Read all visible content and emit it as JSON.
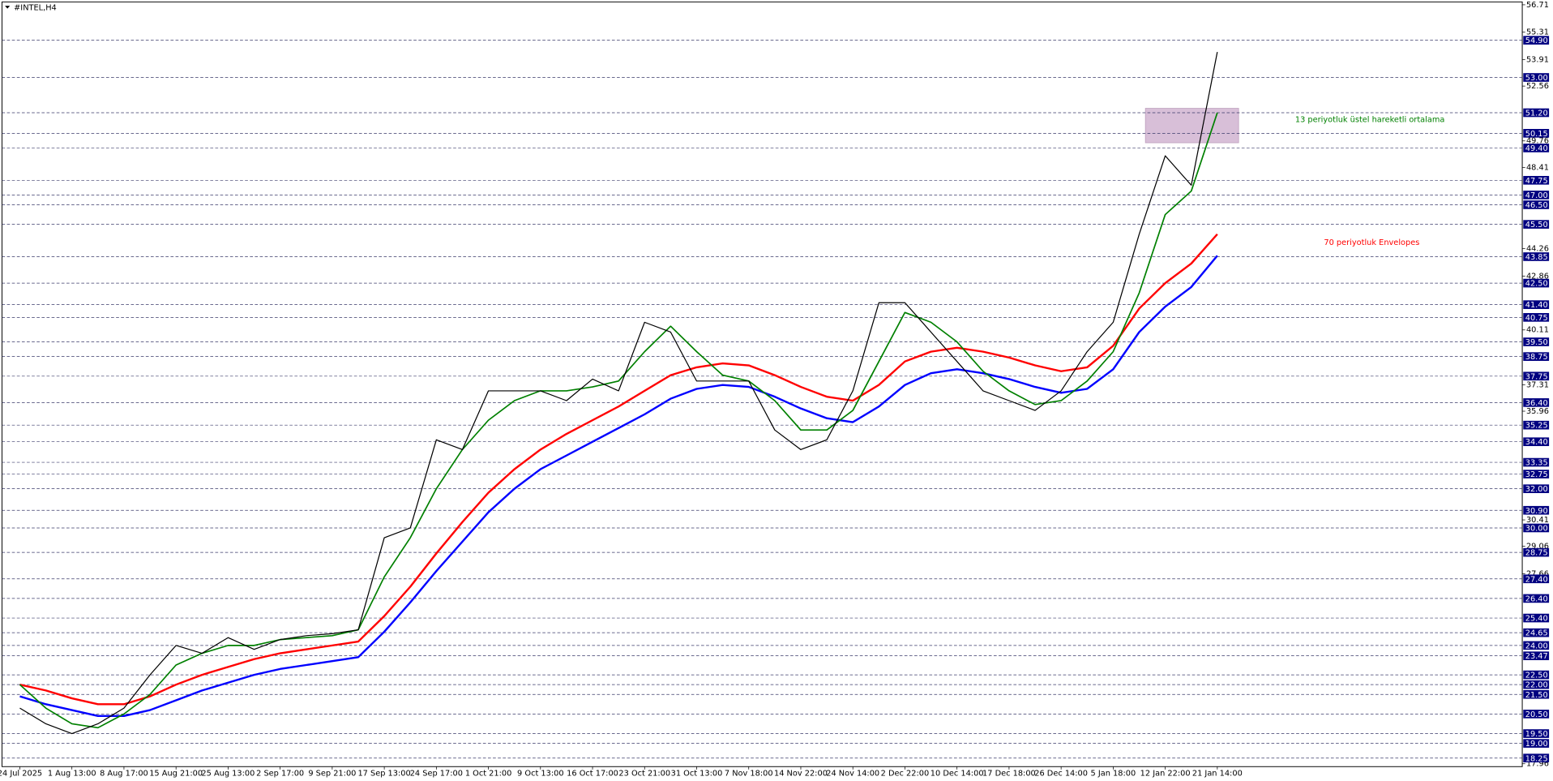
{
  "chart_data": {
    "type": "line",
    "title": "#INTEL,H4",
    "categories": [
      "24 Jul 2025",
      null,
      "1 Aug 13:00",
      null,
      "8 Aug 17:00",
      null,
      "15 Aug 21:00",
      null,
      "25 Aug 13:00",
      null,
      "2 Sep 17:00",
      null,
      "9 Sep 21:00",
      null,
      "17 Sep 13:00",
      null,
      "24 Sep 17:00",
      null,
      "1 Oct 21:00",
      null,
      "9 Oct 13:00",
      null,
      "16 Oct 17:00",
      null,
      "23 Oct 21:00",
      null,
      "31 Oct 13:00",
      null,
      "7 Nov 18:00",
      null,
      "14 Nov 22:00",
      null,
      "24 Nov 14:00",
      null,
      "2 Dec 22:00",
      null,
      "10 Dec 14:00",
      null,
      "17 Dec 18:00",
      null,
      "26 Dec 14:00",
      null,
      "5 Jan 18:00",
      null,
      "12 Jan 22:00",
      null,
      "21 Jan 14:00"
    ],
    "series": [
      {
        "color": "#000000",
        "values": [
          20.8,
          20.0,
          19.5,
          20.0,
          20.8,
          22.5,
          24.0,
          23.6,
          24.4,
          23.8,
          24.3,
          24.5,
          24.6,
          24.8,
          29.5,
          30.0,
          34.5,
          34.0,
          37.0,
          37.0,
          37.0,
          36.5,
          37.6,
          37.0,
          40.5,
          40.0,
          37.5,
          37.5,
          37.5,
          35.0,
          34.0,
          34.5,
          37.0,
          41.5,
          41.5,
          40.0,
          38.5,
          37.0,
          36.5,
          36.0,
          37.0,
          39.0,
          40.5,
          45.0,
          49.0,
          47.5,
          54.3
        ]
      },
      {
        "name": "13 periyotluk üstel hareketli ortalama",
        "color": "#008000",
        "values": [
          22.0,
          20.8,
          20.0,
          19.8,
          20.5,
          21.5,
          23.0,
          23.6,
          24.0,
          24.0,
          24.3,
          24.4,
          24.5,
          24.8,
          27.5,
          29.5,
          32.0,
          34.0,
          35.5,
          36.5,
          37.0,
          37.0,
          37.2,
          37.5,
          39.0,
          40.3,
          39.0,
          37.8,
          37.5,
          36.5,
          35.0,
          35.0,
          36.0,
          38.5,
          41.0,
          40.5,
          39.5,
          38.0,
          37.0,
          36.3,
          36.5,
          37.5,
          39.0,
          42.0,
          46.0,
          47.2,
          51.2
        ]
      },
      {
        "name": "70 periyotluk Envelopes",
        "color": "#ff0000",
        "values": [
          22.0,
          21.7,
          21.3,
          21.0,
          21.0,
          21.4,
          22.0,
          22.5,
          22.9,
          23.3,
          23.6,
          23.8,
          24.0,
          24.2,
          25.5,
          27.0,
          28.7,
          30.3,
          31.8,
          33.0,
          34.0,
          34.8,
          35.5,
          36.2,
          37.0,
          37.8,
          38.2,
          38.4,
          38.3,
          37.8,
          37.2,
          36.7,
          36.5,
          37.3,
          38.5,
          39.0,
          39.2,
          39.0,
          38.7,
          38.3,
          38.0,
          38.2,
          39.3,
          41.2,
          42.5,
          43.5,
          45.0
        ]
      },
      {
        "color": "#0000ff",
        "values": [
          21.4,
          21.0,
          20.7,
          20.4,
          20.4,
          20.7,
          21.2,
          21.7,
          22.1,
          22.5,
          22.8,
          23.0,
          23.2,
          23.4,
          24.7,
          26.2,
          27.8,
          29.3,
          30.8,
          32.0,
          33.0,
          33.7,
          34.4,
          35.1,
          35.8,
          36.6,
          37.1,
          37.3,
          37.2,
          36.7,
          36.1,
          35.6,
          35.4,
          36.2,
          37.3,
          37.9,
          38.1,
          37.9,
          37.6,
          37.2,
          36.9,
          37.1,
          38.1,
          40.0,
          41.3,
          42.3,
          43.9
        ]
      }
    ],
    "ylim": [
      17.96,
      56.71
    ],
    "yticks": [
      17.96,
      27.66,
      29.06,
      30.41,
      35.96,
      37.31,
      40.11,
      42.86,
      44.26,
      48.41,
      49.76,
      52.56,
      53.91,
      55.31,
      56.71
    ],
    "levels": [
      {
        "value": 54.9,
        "label": "54.90"
      },
      {
        "value": 53,
        "label": "53.00"
      },
      {
        "value": 51.2,
        "label": "51.20"
      },
      50.15,
      {
        "value": 49.4,
        "label": "49.40"
      },
      47.75,
      {
        "value": 47,
        "label": "47.00"
      },
      {
        "value": 46.5,
        "label": "46.50"
      },
      {
        "value": 45.5,
        "label": "45.50"
      },
      43.85,
      {
        "value": 42.5,
        "label": "42.50"
      },
      {
        "value": 41.4,
        "label": "41.40"
      },
      40.75,
      {
        "value": 39.5,
        "label": "39.50"
      },
      38.75,
      37.75,
      {
        "value": 36.4,
        "label": "36.40"
      },
      35.25,
      {
        "value": 34.4,
        "label": "34.40"
      },
      33.35,
      32.75,
      {
        "value": 32,
        "label": "32.00"
      },
      {
        "value": 30.9,
        "label": "30.90"
      },
      {
        "value": 30,
        "label": "30.00"
      },
      28.75,
      {
        "value": 27.4,
        "label": "27.40"
      },
      {
        "value": 26.4,
        "label": "26.40"
      },
      {
        "value": 25.4,
        "label": "25.40"
      },
      24.65,
      {
        "value": 24,
        "label": "24.00"
      },
      23.47,
      {
        "value": 22.5,
        "label": "22.50"
      },
      {
        "value": 22,
        "label": "22.00"
      },
      {
        "value": 21.5,
        "label": "21.50"
      },
      {
        "value": 20.5,
        "label": "20.50"
      },
      {
        "value": 19.5,
        "label": "19.50"
      },
      {
        "value": 19,
        "label": "19.00"
      },
      18.25
    ],
    "level_color": "#000080"
  }
}
